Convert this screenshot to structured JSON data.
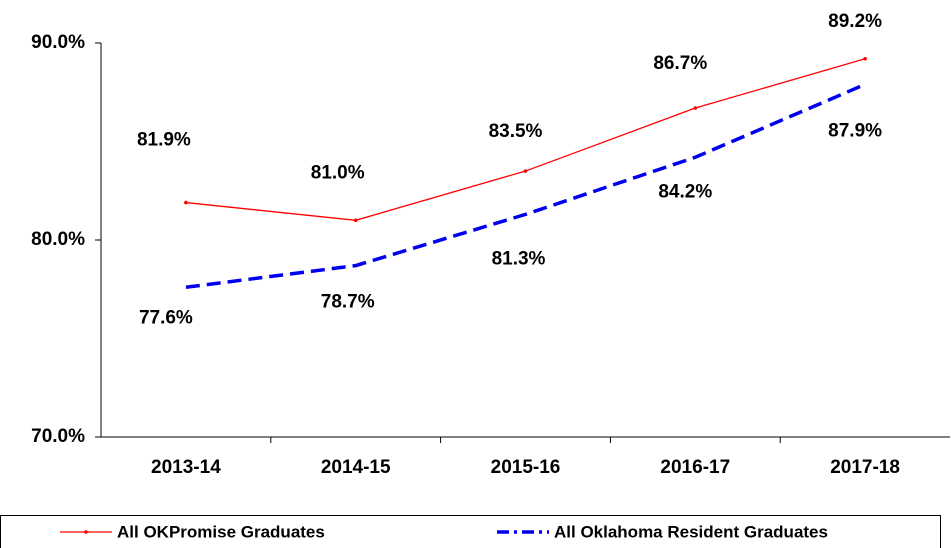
{
  "chart_data": {
    "type": "line",
    "categories": [
      "2013-14",
      "2014-15",
      "2015-16",
      "2016-17",
      "2017-18"
    ],
    "series": [
      {
        "name": "All OKPromise Graduates",
        "color": "#ff0000",
        "values": [
          81.9,
          81.0,
          83.5,
          86.7,
          89.2
        ],
        "value_labels": [
          "81.9%",
          "81.0%",
          "83.5%",
          "86.7%",
          "89.2%"
        ]
      },
      {
        "name": "All Oklahoma Resident Graduates",
        "color": "#0000ee",
        "values": [
          77.6,
          78.7,
          81.3,
          84.2,
          87.9
        ],
        "value_labels": [
          "77.6%",
          "78.7%",
          "81.3%",
          "84.2%",
          "87.9%"
        ]
      }
    ],
    "ylim": [
      70,
      90
    ],
    "yticks": [
      {
        "value": 70,
        "label": "70.0%"
      },
      {
        "value": 80,
        "label": "80.0%"
      },
      {
        "value": 90,
        "label": "90.0%"
      }
    ],
    "grid": false,
    "legend": "bottom"
  }
}
